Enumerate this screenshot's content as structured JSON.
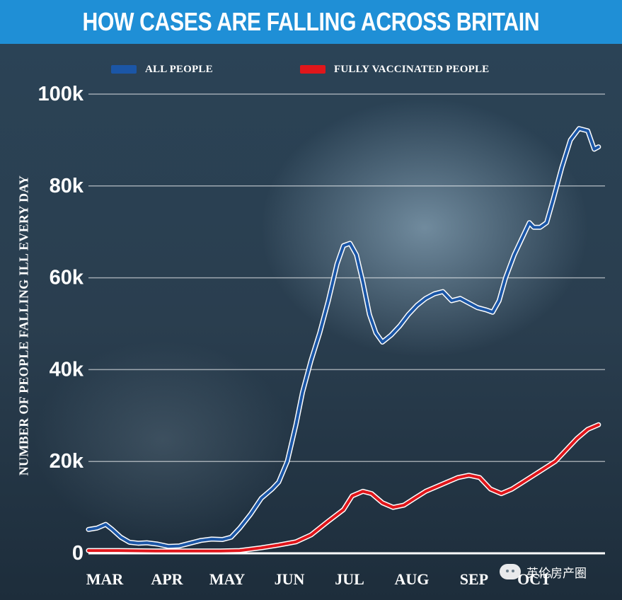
{
  "header": {
    "title": "HOW CASES ARE FALLING ACROSS BRITAIN"
  },
  "watermark": {
    "text": "英伦房产圈"
  },
  "colors": {
    "title_bar": "#1f8fd6",
    "all_people": "#1b56a6",
    "vaccinated": "#e0161b",
    "background": "#24384a"
  },
  "chart_data": {
    "type": "line",
    "title": "HOW CASES ARE FALLING ACROSS BRITAIN",
    "xlabel": "",
    "ylabel": "NUMBER OF PEOPLE FALLING ILL EVERY DAY",
    "ylim": [
      0,
      100000
    ],
    "xlim": [
      "2021-03-01",
      "2021-10-26"
    ],
    "y_ticks": [
      0,
      20000,
      40000,
      60000,
      80000,
      100000
    ],
    "y_tick_labels": [
      "0",
      "20k",
      "40k",
      "60k",
      "80k",
      "100k"
    ],
    "x_tick_labels": [
      {
        "label": "MAR",
        "date": "2021-03-01"
      },
      {
        "label": "APR",
        "date": "2021-04-01"
      },
      {
        "label": "MAY",
        "date": "2021-05-01"
      },
      {
        "label": "JUN",
        "date": "2021-06-01"
      },
      {
        "label": "JUL",
        "date": "2021-07-01"
      },
      {
        "label": "AUG",
        "date": "2021-08-01"
      },
      {
        "label": "SEP",
        "date": "2021-09-01"
      },
      {
        "label": "OCT",
        "date": "2021-10-01"
      }
    ],
    "grid": true,
    "legend_position": "top",
    "series": [
      {
        "name": "ALL PEOPLE",
        "color": "#1b56a6",
        "points": [
          [
            "2021-03-01",
            5200
          ],
          [
            "2021-03-05",
            5500
          ],
          [
            "2021-03-09",
            6300
          ],
          [
            "2021-03-12",
            5200
          ],
          [
            "2021-03-16",
            3500
          ],
          [
            "2021-03-20",
            2400
          ],
          [
            "2021-03-24",
            2200
          ],
          [
            "2021-03-28",
            2300
          ],
          [
            "2021-04-02",
            2000
          ],
          [
            "2021-04-07",
            1500
          ],
          [
            "2021-04-12",
            1600
          ],
          [
            "2021-04-17",
            2200
          ],
          [
            "2021-04-22",
            2800
          ],
          [
            "2021-04-27",
            3100
          ],
          [
            "2021-05-02",
            3000
          ],
          [
            "2021-05-06",
            3500
          ],
          [
            "2021-05-10",
            5500
          ],
          [
            "2021-05-15",
            8500
          ],
          [
            "2021-05-20",
            12000
          ],
          [
            "2021-05-25",
            14000
          ],
          [
            "2021-05-28",
            15500
          ],
          [
            "2021-06-01",
            20000
          ],
          [
            "2021-06-05",
            28000
          ],
          [
            "2021-06-08",
            35000
          ],
          [
            "2021-06-12",
            42000
          ],
          [
            "2021-06-16",
            48000
          ],
          [
            "2021-06-20",
            55000
          ],
          [
            "2021-06-24",
            63000
          ],
          [
            "2021-06-27",
            67000
          ],
          [
            "2021-06-30",
            67500
          ],
          [
            "2021-07-03",
            65000
          ],
          [
            "2021-07-06",
            59000
          ],
          [
            "2021-07-09",
            52000
          ],
          [
            "2021-07-12",
            48000
          ],
          [
            "2021-07-15",
            46000
          ],
          [
            "2021-07-19",
            47500
          ],
          [
            "2021-07-23",
            49500
          ],
          [
            "2021-07-27",
            52000
          ],
          [
            "2021-07-31",
            54000
          ],
          [
            "2021-08-04",
            55500
          ],
          [
            "2021-08-08",
            56500
          ],
          [
            "2021-08-12",
            57000
          ],
          [
            "2021-08-16",
            55000
          ],
          [
            "2021-08-20",
            55500
          ],
          [
            "2021-08-24",
            54500
          ],
          [
            "2021-08-28",
            53500
          ],
          [
            "2021-09-01",
            53000
          ],
          [
            "2021-09-04",
            52500
          ],
          [
            "2021-09-07",
            55000
          ],
          [
            "2021-09-10",
            60000
          ],
          [
            "2021-09-14",
            65000
          ],
          [
            "2021-09-18",
            69000
          ],
          [
            "2021-09-21",
            72000
          ],
          [
            "2021-09-23",
            71000
          ],
          [
            "2021-09-26",
            71000
          ],
          [
            "2021-09-29",
            72000
          ],
          [
            "2021-10-02",
            77000
          ],
          [
            "2021-10-06",
            84000
          ],
          [
            "2021-10-10",
            90000
          ],
          [
            "2021-10-14",
            92500
          ],
          [
            "2021-10-18",
            92000
          ],
          [
            "2021-10-21",
            88000
          ],
          [
            "2021-10-23",
            88500
          ]
        ]
      },
      {
        "name": "FULLY VACCINATED PEOPLE",
        "color": "#e0161b",
        "points": [
          [
            "2021-03-01",
            600
          ],
          [
            "2021-03-15",
            600
          ],
          [
            "2021-04-01",
            500
          ],
          [
            "2021-04-15",
            500
          ],
          [
            "2021-05-01",
            500
          ],
          [
            "2021-05-10",
            600
          ],
          [
            "2021-05-20",
            1200
          ],
          [
            "2021-05-28",
            1800
          ],
          [
            "2021-06-05",
            2500
          ],
          [
            "2021-06-12",
            4000
          ],
          [
            "2021-06-20",
            7000
          ],
          [
            "2021-06-27",
            9500
          ],
          [
            "2021-07-01",
            12500
          ],
          [
            "2021-07-06",
            13500
          ],
          [
            "2021-07-10",
            13000
          ],
          [
            "2021-07-15",
            11000
          ],
          [
            "2021-07-20",
            10000
          ],
          [
            "2021-07-25",
            10500
          ],
          [
            "2021-07-30",
            12000
          ],
          [
            "2021-08-04",
            13500
          ],
          [
            "2021-08-09",
            14500
          ],
          [
            "2021-08-14",
            15500
          ],
          [
            "2021-08-19",
            16500
          ],
          [
            "2021-08-24",
            17000
          ],
          [
            "2021-08-29",
            16500
          ],
          [
            "2021-09-03",
            14000
          ],
          [
            "2021-09-08",
            13000
          ],
          [
            "2021-09-13",
            14000
          ],
          [
            "2021-09-18",
            15500
          ],
          [
            "2021-09-23",
            17000
          ],
          [
            "2021-09-28",
            18500
          ],
          [
            "2021-10-03",
            20000
          ],
          [
            "2021-10-08",
            22500
          ],
          [
            "2021-10-13",
            25000
          ],
          [
            "2021-10-18",
            27000
          ],
          [
            "2021-10-23",
            28000
          ]
        ]
      }
    ]
  }
}
